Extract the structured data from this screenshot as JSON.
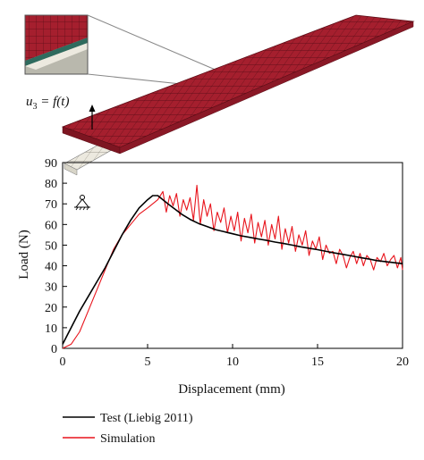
{
  "figure": {
    "formula": "u",
    "formula_sub": "3",
    "formula_rest": " = f(t)"
  },
  "colors": {
    "mesh_red": "#a51f2e",
    "mesh_beige": "#ece9df",
    "test_line": "#000000",
    "simulation_line": "#e8141c"
  },
  "chart_data": {
    "type": "line",
    "xlabel": "Displacement (mm)",
    "ylabel": "Load (N)",
    "xlim": [
      0,
      20
    ],
    "ylim": [
      0,
      90
    ],
    "xticks": [
      0,
      5,
      10,
      15,
      20
    ],
    "yticks": [
      0,
      10,
      20,
      30,
      40,
      50,
      60,
      70,
      80,
      90
    ],
    "grid": false,
    "legend_position": "bottom-left",
    "series": [
      {
        "name": "Test (Liebig 2011)",
        "x": [
          0,
          0.5,
          1,
          1.5,
          2,
          2.5,
          3,
          3.5,
          4,
          4.5,
          5,
          5.3,
          5.6,
          5.9,
          6.2,
          6.6,
          7,
          7.5,
          8,
          8.5,
          9,
          9.5,
          10,
          10.5,
          11,
          11.5,
          12,
          12.5,
          13,
          13.5,
          14,
          14.5,
          15,
          15.5,
          16,
          16.5,
          17,
          17.5,
          18,
          18.5,
          19,
          19.5,
          20
        ],
        "y": [
          2,
          10,
          18,
          25,
          32,
          39,
          47,
          55,
          62,
          68,
          72,
          74,
          74,
          72,
          70,
          67.5,
          65,
          62.5,
          60.5,
          59,
          57.5,
          56.5,
          55.5,
          54.5,
          53.8,
          53,
          52.3,
          51.5,
          50.8,
          50,
          49.2,
          48.5,
          47.8,
          47,
          46.2,
          45.5,
          44.8,
          44,
          43.3,
          42.5,
          42,
          41.5,
          41
        ]
      },
      {
        "name": "Simulation",
        "x": [
          0,
          0.5,
          1,
          1.5,
          2,
          2.5,
          3,
          3.5,
          4,
          4.5,
          5,
          5.3,
          5.6,
          5.9,
          6.1,
          6.3,
          6.5,
          6.7,
          6.9,
          7.1,
          7.3,
          7.5,
          7.7,
          7.9,
          8.1,
          8.3,
          8.5,
          8.7,
          8.9,
          9.1,
          9.3,
          9.5,
          9.7,
          9.9,
          10.1,
          10.3,
          10.5,
          10.7,
          10.9,
          11.1,
          11.3,
          11.5,
          11.7,
          11.9,
          12.1,
          12.3,
          12.5,
          12.7,
          12.9,
          13.1,
          13.3,
          13.5,
          13.7,
          13.9,
          14.1,
          14.3,
          14.5,
          14.7,
          14.9,
          15.1,
          15.3,
          15.5,
          15.7,
          15.9,
          16.1,
          16.3,
          16.5,
          16.7,
          16.9,
          17.1,
          17.3,
          17.5,
          17.7,
          17.9,
          18.1,
          18.3,
          18.5,
          18.7,
          18.9,
          19.1,
          19.3,
          19.5,
          19.7,
          19.9,
          20
        ],
        "y": [
          0,
          2,
          8,
          18,
          28,
          38,
          48,
          55,
          60,
          65,
          68,
          70,
          72,
          76,
          66,
          74,
          69,
          75,
          64,
          72,
          67,
          73,
          62,
          79,
          60,
          72,
          64,
          70,
          57,
          66,
          61,
          68,
          56,
          64,
          57,
          66,
          52,
          63,
          56,
          65,
          51,
          61,
          54,
          62,
          50,
          60,
          53,
          64,
          48,
          58,
          51,
          59,
          47,
          55,
          50,
          57,
          45,
          52,
          48,
          54,
          43,
          50,
          46,
          47,
          41,
          48,
          45,
          39,
          44,
          47,
          41,
          46,
          40,
          45,
          43,
          38,
          44,
          42,
          46,
          40,
          43,
          45,
          39,
          44,
          38
        ]
      }
    ]
  }
}
